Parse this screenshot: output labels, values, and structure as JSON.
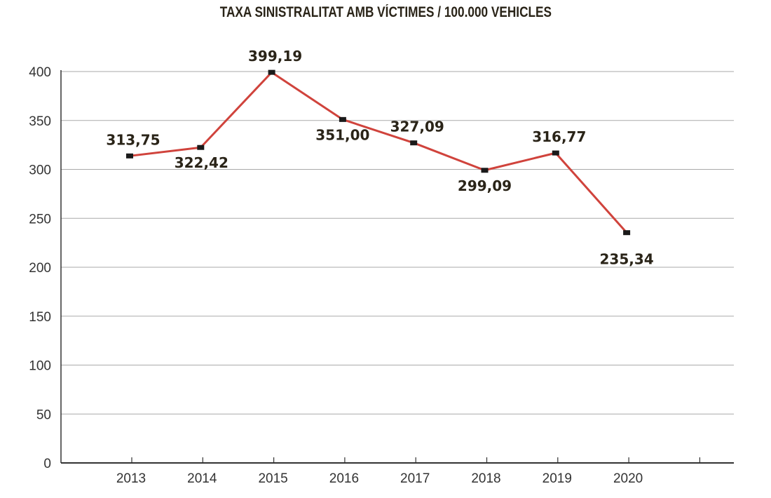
{
  "chart_data": {
    "type": "line",
    "title": "TAXA SINISTRALITAT AMB VÍCTIMES / 100.000 VEHICLES",
    "xlabel": "",
    "ylabel": "",
    "categories": [
      "2013",
      "2014",
      "2015",
      "2016",
      "2017",
      "2018",
      "2019",
      "2020"
    ],
    "values": [
      313.75,
      322.42,
      399.19,
      351.0,
      327.09,
      299.09,
      316.77,
      235.34
    ],
    "data_labels": [
      "313,75",
      "322,42",
      "399,19",
      "351,00",
      "327,09",
      "299,09",
      "316,77",
      "235,34"
    ],
    "yticks": [
      "0",
      "50",
      "100",
      "150",
      "200",
      "250",
      "300",
      "350",
      "400"
    ],
    "ylim": [
      0,
      400
    ],
    "grid": true,
    "line_color": "#d0433c",
    "marker_color": "#1a1a1a"
  }
}
